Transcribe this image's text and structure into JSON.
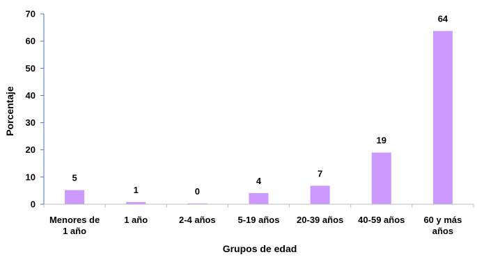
{
  "chart_data": {
    "type": "bar",
    "title": "",
    "xlabel": "Grupos de edad",
    "ylabel": "Porcentaje",
    "ylim": [
      0,
      70
    ],
    "yticks": [
      0,
      10,
      20,
      30,
      40,
      50,
      60,
      70
    ],
    "grid": false,
    "legend": "none",
    "bar_color": "#cc99ff",
    "axis_color": "#4a74b5",
    "categories": [
      [
        "Menores de",
        "1 año"
      ],
      [
        "1 año"
      ],
      [
        "2-4 años"
      ],
      [
        "5-19 años"
      ],
      [
        "20-39 años"
      ],
      [
        "40-59 años"
      ],
      [
        "60 y más",
        "años"
      ]
    ],
    "values": [
      5.2,
      0.8,
      0.3,
      4.1,
      6.8,
      19.0,
      63.7
    ],
    "data_labels": [
      "5",
      "1",
      "0",
      "4",
      "7",
      "19",
      "64"
    ]
  }
}
